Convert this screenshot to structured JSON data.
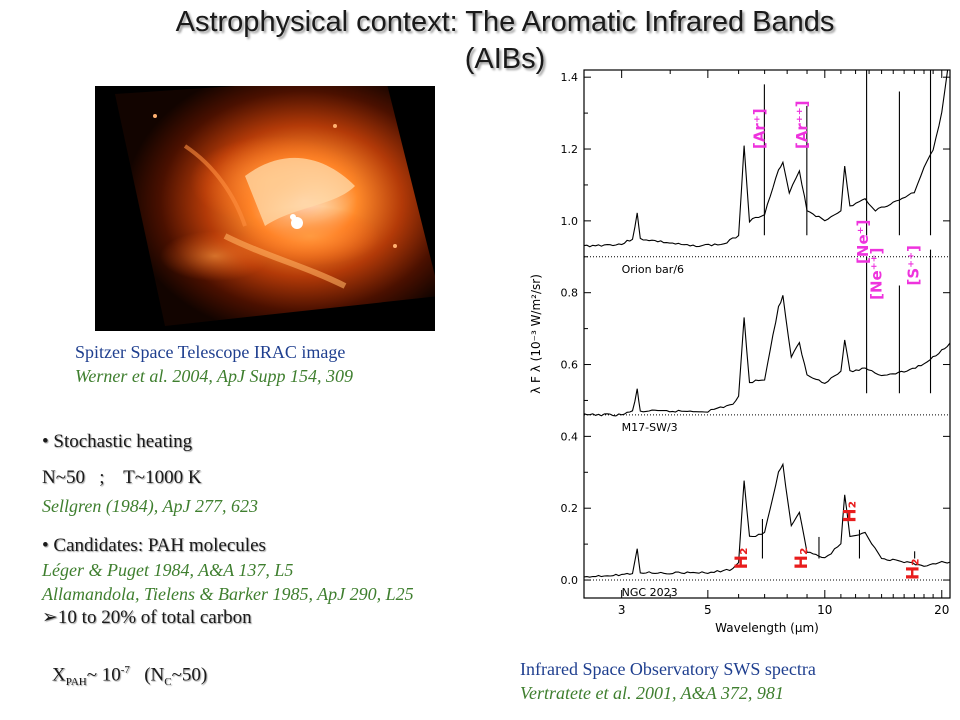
{
  "slide": {
    "title_line1": "Astrophysical context: The Aromatic Infrared Bands",
    "title_line2": "(AIBs)"
  },
  "image_caption": {
    "line1": "Spitzer Space Telescope IRAC image",
    "line2": "Werner et al. 2004, ApJ Supp 154, 309"
  },
  "bullets": {
    "stochastic": "• Stochastic heating",
    "n_t": "N~50   ;    T~1000 K",
    "sellgren": "Sellgren (1984), ApJ 277, 623",
    "candidates": "• Candidates: PAH molecules",
    "leger": "Léger & Puget 1984, A&A 137, L5",
    "allamandola": "Allamandola, Tielens & Barker 1985, ApJ 290, L25",
    "carbon": "10 to 20% of total carbon",
    "carbon_marker": "➢",
    "xpah_x": "X",
    "xpah_sub": "PAH",
    "xpah_mid": "~ 10",
    "xpah_exp": "-7",
    "xpah_paren_open": "   (N",
    "xpah_c": "C",
    "xpah_close": "~50)"
  },
  "chart_caption": {
    "line1": "Infrared Space Observatory SWS spectra",
    "line2": "Vertratete et al. 2001, A&A 372, 981"
  },
  "colors": {
    "magenta": "#ee33dd",
    "red": "#e81c1c",
    "blue_text": "#1f3f8f",
    "green_text": "#3f7f2f"
  },
  "chart_data": {
    "type": "line",
    "xlabel": "Wavelength (μm)",
    "ylabel": "λ F λ (10⁻³ W/m²/sr)",
    "x_scale": "log",
    "xlim": [
      2.4,
      21
    ],
    "ylim": [
      -0.05,
      1.42
    ],
    "x_ticks": [
      3,
      5,
      10,
      20
    ],
    "y_ticks": [
      0.0,
      0.2,
      0.4,
      0.6,
      0.8,
      1.0,
      1.2,
      1.4
    ],
    "y_tick_labels": [
      "0.0",
      "0.2",
      "0.4",
      "0.6",
      "0.8",
      "1.0",
      "1.2",
      "1.4"
    ],
    "baselines": [
      0.9,
      0.46,
      0.0
    ],
    "series": [
      {
        "name": "Orion bar/6",
        "baseline": 0.9,
        "points": [
          [
            2.4,
            0.93
          ],
          [
            3.0,
            0.935
          ],
          [
            3.2,
            0.95
          ],
          [
            3.29,
            1.02
          ],
          [
            3.35,
            0.95
          ],
          [
            4.5,
            0.93
          ],
          [
            5.5,
            0.935
          ],
          [
            6.0,
            0.96
          ],
          [
            6.2,
            1.21
          ],
          [
            6.4,
            1.0
          ],
          [
            7.0,
            1.02
          ],
          [
            7.6,
            1.14
          ],
          [
            7.8,
            1.16
          ],
          [
            8.1,
            1.08
          ],
          [
            8.6,
            1.14
          ],
          [
            9.0,
            1.03
          ],
          [
            10.0,
            1.0
          ],
          [
            11.0,
            1.03
          ],
          [
            11.25,
            1.15
          ],
          [
            11.6,
            1.04
          ],
          [
            12.7,
            1.06
          ],
          [
            13.5,
            1.03
          ],
          [
            15.0,
            1.05
          ],
          [
            17.0,
            1.08
          ],
          [
            18.0,
            1.15
          ],
          [
            19.0,
            1.2
          ],
          [
            20.0,
            1.3
          ],
          [
            20.7,
            1.42
          ]
        ],
        "lines": [
          [
            6.99,
            1.38
          ],
          [
            8.99,
            1.32
          ],
          [
            12.81,
            1.42
          ],
          [
            15.56,
            1.36
          ],
          [
            18.71,
            1.42
          ]
        ]
      },
      {
        "name": "M17-SW/3",
        "baseline": 0.46,
        "points": [
          [
            2.4,
            0.46
          ],
          [
            3.0,
            0.46
          ],
          [
            3.2,
            0.47
          ],
          [
            3.29,
            0.53
          ],
          [
            3.35,
            0.47
          ],
          [
            5.0,
            0.47
          ],
          [
            5.8,
            0.49
          ],
          [
            6.0,
            0.51
          ],
          [
            6.2,
            0.73
          ],
          [
            6.4,
            0.55
          ],
          [
            7.0,
            0.56
          ],
          [
            7.6,
            0.76
          ],
          [
            7.8,
            0.79
          ],
          [
            8.2,
            0.62
          ],
          [
            8.6,
            0.66
          ],
          [
            9.0,
            0.57
          ],
          [
            10.0,
            0.55
          ],
          [
            11.0,
            0.58
          ],
          [
            11.25,
            0.67
          ],
          [
            11.6,
            0.58
          ],
          [
            12.7,
            0.59
          ],
          [
            14.0,
            0.57
          ],
          [
            16.0,
            0.58
          ],
          [
            18.0,
            0.6
          ],
          [
            20.0,
            0.64
          ],
          [
            21.0,
            0.66
          ]
        ],
        "lines": [
          [
            12.81,
            0.9
          ],
          [
            15.56,
            0.82
          ],
          [
            18.71,
            0.92
          ]
        ]
      },
      {
        "name": "NGC 2023",
        "baseline": 0.0,
        "points": [
          [
            2.4,
            0.01
          ],
          [
            3.0,
            0.015
          ],
          [
            3.2,
            0.02
          ],
          [
            3.29,
            0.09
          ],
          [
            3.35,
            0.02
          ],
          [
            5.0,
            0.02
          ],
          [
            5.8,
            0.03
          ],
          [
            6.0,
            0.05
          ],
          [
            6.2,
            0.28
          ],
          [
            6.4,
            0.12
          ],
          [
            7.0,
            0.13
          ],
          [
            7.6,
            0.3
          ],
          [
            7.8,
            0.32
          ],
          [
            8.2,
            0.15
          ],
          [
            8.6,
            0.19
          ],
          [
            9.0,
            0.08
          ],
          [
            10.0,
            0.06
          ],
          [
            11.0,
            0.1
          ],
          [
            11.25,
            0.24
          ],
          [
            11.6,
            0.12
          ],
          [
            12.7,
            0.13
          ],
          [
            14.0,
            0.06
          ],
          [
            16.0,
            0.05
          ],
          [
            18.0,
            0.04
          ],
          [
            20.0,
            0.05
          ],
          [
            21.0,
            0.05
          ]
        ],
        "lines": [
          [
            6.91,
            0.17
          ],
          [
            9.66,
            0.12
          ],
          [
            12.28,
            0.14
          ],
          [
            17.03,
            0.08
          ]
        ]
      }
    ],
    "line_labels": [
      {
        "text": "[Ar⁺]",
        "color": "magenta"
      },
      {
        "text": "[Ar⁺⁺]",
        "color": "magenta"
      },
      {
        "text": "[Ne⁺]",
        "color": "magenta"
      },
      {
        "text": "[Ne⁺⁺]",
        "color": "magenta"
      },
      {
        "text": "[S⁺⁺]",
        "color": "magenta"
      },
      {
        "text": "H₂",
        "color": "red"
      },
      {
        "text": "H₂",
        "color": "red"
      },
      {
        "text": "H₂",
        "color": "red"
      },
      {
        "text": "H₂",
        "color": "red"
      }
    ]
  }
}
